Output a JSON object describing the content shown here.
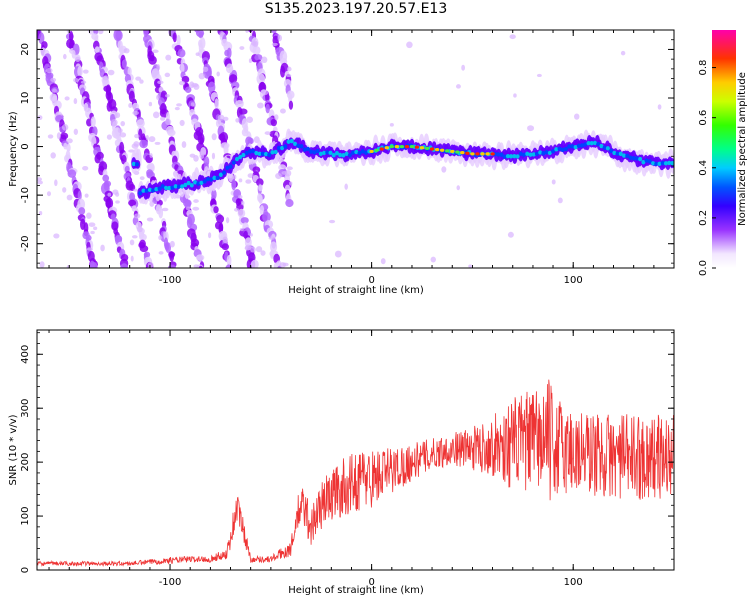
{
  "figure": {
    "title": "S135.2023.197.20.57.E13"
  },
  "chart_data": [
    {
      "type": "heatmap",
      "xlabel": "Height of straight line (km)",
      "ylabel": "Frequency (Hz)",
      "xlim": [
        -166,
        150
      ],
      "ylim": [
        -25,
        24
      ],
      "x_ticks": [
        -100,
        0,
        100
      ],
      "y_ticks": [
        -20,
        -10,
        0,
        10,
        20
      ],
      "colorbar": {
        "label": "Normalized spectral amplitude",
        "range": [
          0,
          0.95
        ],
        "ticks": [
          0.0,
          0.2,
          0.4,
          0.6,
          0.8
        ]
      },
      "ridge": {
        "description_points": [
          [
            -115,
            -9.5
          ],
          [
            -105,
            -8.5
          ],
          [
            -95,
            -8
          ],
          [
            -85,
            -7.5
          ],
          [
            -75,
            -6
          ],
          [
            -68,
            -3
          ],
          [
            -60,
            -1
          ],
          [
            -50,
            -1.5
          ],
          [
            -40,
            1
          ],
          [
            -30,
            -1
          ],
          [
            -20,
            -1.5
          ],
          [
            -10,
            -1.5
          ],
          [
            0,
            -1
          ],
          [
            10,
            0
          ],
          [
            20,
            0
          ],
          [
            30,
            -0.5
          ],
          [
            40,
            -1
          ],
          [
            50,
            -1.5
          ],
          [
            60,
            -1.5
          ],
          [
            70,
            -2
          ],
          [
            80,
            -1.5
          ],
          [
            90,
            -1
          ],
          [
            100,
            0
          ],
          [
            110,
            1
          ],
          [
            115,
            0
          ],
          [
            125,
            -2
          ],
          [
            135,
            -3
          ],
          [
            145,
            -3.5
          ],
          [
            150,
            -3.5
          ]
        ]
      },
      "grid": false
    },
    {
      "type": "line",
      "xlabel": "Height of straight line (km)",
      "ylabel": "SNR (10 * v/v)",
      "xlim": [
        -166,
        150
      ],
      "ylim": [
        0,
        445
      ],
      "x_ticks": [
        -100,
        0,
        100
      ],
      "y_ticks": [
        0,
        100,
        200,
        300,
        400
      ],
      "color": "#ee3333",
      "series": [
        {
          "envelope_x": [
            -166,
            -120,
            -100,
            -90,
            -80,
            -72,
            -69,
            -67,
            -64,
            -60,
            -50,
            -40,
            -37,
            -34,
            -30,
            -25,
            -20,
            -15,
            -10,
            -5,
            0,
            10,
            20,
            30,
            40,
            50,
            60,
            65,
            70,
            80,
            85,
            87,
            90,
            100,
            110,
            120,
            130,
            140,
            150
          ],
          "envelope_y": [
            12,
            12,
            18,
            20,
            20,
            30,
            75,
            120,
            80,
            20,
            20,
            40,
            100,
            120,
            80,
            120,
            140,
            150,
            160,
            170,
            170,
            185,
            200,
            215,
            225,
            225,
            230,
            230,
            235,
            240,
            240,
            245,
            230,
            220,
            215,
            210,
            210,
            210,
            210
          ],
          "noise_amplitude": [
            4,
            4,
            6,
            6,
            6,
            10,
            30,
            30,
            25,
            6,
            6,
            15,
            35,
            40,
            40,
            45,
            50,
            55,
            55,
            60,
            55,
            45,
            35,
            30,
            30,
            40,
            55,
            75,
            85,
            95,
            100,
            120,
            100,
            85,
            80,
            80,
            80,
            80,
            80
          ]
        }
      ],
      "grid": false
    }
  ]
}
